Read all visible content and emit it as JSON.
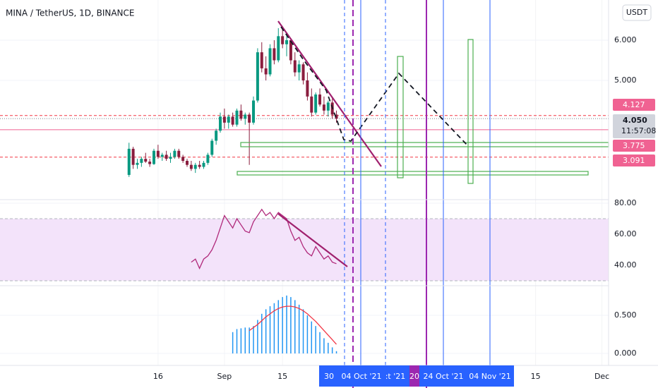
{
  "header": {
    "title": "MINA / TetherUS, 1D, BINANCE",
    "currency": "USDT"
  },
  "time_axis": {
    "highlight_labels": [
      "30",
      "04 Oct '21",
      ":t '21",
      "20",
      "24 Oct '21",
      "04 Nov '21"
    ]
  },
  "chart_data": [
    {
      "type": "candlestick",
      "up_color": "#089981",
      "down_color": "#8a1d3e",
      "xlim": [
        -23.1,
        123.6
      ],
      "ylim": [
        2.035,
        7.0
      ],
      "xticks": [
        {
          "value": 15,
          "label": "16"
        },
        {
          "value": 31,
          "label": "Sep"
        },
        {
          "value": 45,
          "label": "15"
        },
        {
          "value": 106,
          "label": "15"
        },
        {
          "value": 122,
          "label": "Dec"
        }
      ],
      "yticks": [
        {
          "value": 5,
          "label": "5.000"
        },
        {
          "value": 6,
          "label": "6.000"
        }
      ],
      "grid": true,
      "x": [
        8,
        9,
        10,
        11,
        12,
        13,
        14,
        15,
        16,
        17,
        18,
        19,
        20,
        21,
        22,
        23,
        24,
        25,
        26,
        27,
        28,
        29,
        30,
        31,
        32,
        33,
        34,
        35,
        36,
        37,
        38,
        39,
        40,
        41,
        42,
        43,
        44,
        45,
        46,
        47,
        48,
        49,
        50,
        51,
        52,
        53,
        54,
        55,
        56,
        57,
        58
      ],
      "open": [
        2.65,
        3.3,
        2.9,
        2.95,
        3.05,
        2.98,
        2.92,
        3.25,
        3.1,
        3.15,
        3.05,
        3.1,
        3.25,
        3.1,
        3.0,
        2.9,
        2.8,
        2.9,
        2.85,
        2.95,
        3.15,
        3.5,
        3.75,
        4.1,
        3.95,
        4.1,
        3.9,
        4.25,
        4.05,
        4.15,
        3.95,
        4.5,
        5.7,
        5.3,
        5.15,
        5.8,
        5.5,
        6.1,
        5.9,
        6.0,
        5.5,
        5.2,
        5.4,
        5.0,
        4.6,
        4.2,
        4.65,
        4.4,
        4.25,
        4.45,
        4.15
      ],
      "high": [
        3.45,
        3.35,
        3.05,
        3.1,
        3.2,
        3.05,
        3.3,
        3.4,
        3.2,
        3.25,
        3.2,
        3.3,
        3.3,
        3.15,
        3.05,
        3.0,
        2.95,
        3.0,
        3.0,
        3.2,
        3.55,
        3.8,
        4.2,
        4.3,
        4.15,
        4.2,
        4.3,
        4.4,
        4.2,
        4.2,
        4.6,
        5.8,
        5.95,
        5.6,
        5.9,
        6.0,
        6.3,
        6.35,
        6.1,
        6.05,
        5.7,
        5.5,
        5.45,
        5.2,
        4.8,
        4.7,
        4.8,
        4.6,
        4.5,
        4.55,
        4.25
      ],
      "low": [
        2.6,
        2.8,
        2.8,
        2.85,
        2.95,
        2.85,
        2.9,
        3.05,
        3.0,
        3.0,
        2.95,
        3.05,
        3.05,
        2.95,
        2.85,
        2.75,
        2.7,
        2.8,
        2.8,
        2.9,
        3.1,
        3.4,
        3.7,
        3.8,
        3.8,
        3.85,
        3.85,
        4.0,
        3.9,
        2.9,
        3.9,
        4.45,
        5.2,
        5.0,
        5.1,
        5.4,
        5.45,
        5.8,
        5.6,
        5.4,
        5.1,
        5.0,
        4.9,
        4.5,
        4.1,
        4.15,
        4.35,
        4.15,
        4.1,
        4.05,
        3.95
      ],
      "close": [
        3.3,
        2.9,
        2.95,
        3.05,
        2.98,
        2.92,
        3.25,
        3.1,
        3.15,
        3.05,
        3.1,
        3.25,
        3.1,
        3.0,
        2.9,
        2.8,
        2.9,
        2.85,
        2.95,
        3.15,
        3.5,
        3.75,
        4.1,
        3.95,
        4.1,
        3.9,
        4.25,
        4.05,
        4.15,
        3.95,
        4.5,
        5.7,
        5.3,
        5.15,
        5.8,
        5.5,
        6.1,
        5.9,
        6.0,
        5.5,
        5.2,
        5.4,
        5.0,
        4.6,
        4.2,
        4.65,
        4.4,
        4.25,
        4.45,
        4.15,
        4.05
      ],
      "price_labels": [
        {
          "value": 4.127,
          "label": "4.127",
          "color": "#f06292"
        },
        {
          "value": 4.05,
          "label": "4.050",
          "countdown": "11:57:08",
          "color": "#d1d4dc"
        },
        {
          "value": 3.775,
          "label": "3.775",
          "color": "#f06292"
        },
        {
          "value": 3.091,
          "label": "3.091",
          "color": "#f06292"
        }
      ]
    },
    {
      "type": "line",
      "color": "#b0287a",
      "ylim": [
        26.8,
        82.3
      ],
      "band": [
        30,
        70
      ],
      "band_color": "#f3e3fa",
      "yticks": [
        {
          "value": 80,
          "label": "80.00"
        },
        {
          "value": 60,
          "label": "60.00"
        },
        {
          "value": 40,
          "label": "40.00"
        }
      ],
      "x": [
        23,
        24,
        25,
        26,
        27,
        28,
        29,
        30,
        31,
        32,
        33,
        34,
        35,
        36,
        37,
        38,
        39,
        40,
        41,
        42,
        43,
        44,
        45,
        46,
        47,
        48,
        49,
        50,
        51,
        52,
        53,
        54,
        55,
        56,
        57,
        58
      ],
      "values": [
        42,
        44,
        38,
        44,
        46,
        50,
        56,
        64,
        72,
        68,
        64,
        70,
        66,
        62,
        61,
        68,
        72,
        76,
        72,
        74,
        70,
        74,
        72,
        70,
        62,
        56,
        58,
        52,
        48,
        46,
        52,
        48,
        44,
        46,
        42,
        41
      ]
    },
    {
      "type": "bar",
      "color": "#2196f3",
      "ylim": [
        -0.157,
        0.889
      ],
      "yticks": [
        {
          "value": 0.5,
          "label": "0.500"
        },
        {
          "value": 0,
          "label": "0.000"
        }
      ],
      "x": [
        33,
        34,
        35,
        36,
        37,
        38,
        39,
        40,
        41,
        42,
        43,
        44,
        45,
        46,
        47,
        48,
        49,
        50,
        51,
        52,
        53,
        54,
        55,
        56,
        57,
        58
      ],
      "values": [
        0.28,
        0.32,
        0.33,
        0.34,
        0.34,
        0.36,
        0.44,
        0.52,
        0.58,
        0.62,
        0.66,
        0.7,
        0.74,
        0.76,
        0.74,
        0.7,
        0.64,
        0.58,
        0.5,
        0.42,
        0.36,
        0.28,
        0.2,
        0.14,
        0.08,
        0.03
      ],
      "signal": {
        "color": "#f23645",
        "x": [
          37,
          38,
          39,
          40,
          41,
          42,
          43,
          44,
          45,
          46,
          47,
          48,
          49,
          50,
          51,
          52,
          53,
          54,
          55,
          56,
          57,
          58
        ],
        "values": [
          0.3,
          0.34,
          0.38,
          0.43,
          0.48,
          0.52,
          0.56,
          0.59,
          0.61,
          0.62,
          0.62,
          0.61,
          0.59,
          0.56,
          0.52,
          0.47,
          0.42,
          0.36,
          0.3,
          0.24,
          0.18,
          0.12
        ]
      }
    }
  ]
}
